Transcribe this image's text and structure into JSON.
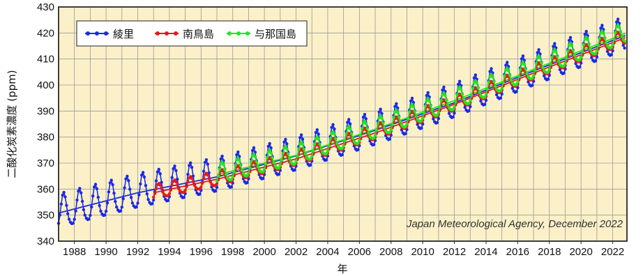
{
  "chart_data": {
    "type": "line",
    "title": "",
    "xlabel": "年",
    "ylabel": "二酸化炭素濃度 (ppm)",
    "xlim": [
      1987.0,
      2022.9
    ],
    "ylim": [
      340,
      430
    ],
    "x_ticks": [
      1988,
      1990,
      1992,
      1994,
      1996,
      1998,
      2000,
      2002,
      2004,
      2006,
      2008,
      2010,
      2012,
      2014,
      2016,
      2018,
      2020,
      2022
    ],
    "y_ticks": [
      340,
      350,
      360,
      370,
      380,
      390,
      400,
      410,
      420,
      430
    ],
    "grid": true,
    "legend_position": "top-left",
    "annotation": "Japan Meteorological Agency, December 2022",
    "colors": {
      "background": "#fbf0c8",
      "grid": "#9a9a9a",
      "綾里": "#1a2ae6",
      "南鳥島": "#e61a1a",
      "与那国島": "#22e622"
    },
    "series": [
      {
        "name": "綾里",
        "color": "#1a2ae6",
        "start_year": 1987.0,
        "end_year": 2022.8,
        "trend_points": [
          [
            1987.0,
            350.8
          ],
          [
            1992.0,
            358.6
          ],
          [
            1997.0,
            364.7
          ],
          [
            2002.0,
            372.8
          ],
          [
            2007.0,
            382.6
          ],
          [
            2012.0,
            393.2
          ],
          [
            2017.0,
            405.4
          ],
          [
            2022.8,
            419.0
          ]
        ],
        "seasonal_amplitude": 7.5
      },
      {
        "name": "南鳥島",
        "color": "#e61a1a",
        "start_year": 1993.0,
        "end_year": 2022.8,
        "trend_points": [
          [
            1993.0,
            358.6
          ],
          [
            1997.0,
            363.8
          ],
          [
            2002.0,
            371.6
          ],
          [
            2007.0,
            381.6
          ],
          [
            2012.0,
            392.6
          ],
          [
            2017.0,
            404.6
          ],
          [
            2022.8,
            418.2
          ]
        ],
        "seasonal_amplitude": 3.2
      },
      {
        "name": "与那国島",
        "color": "#22e622",
        "start_year": 1997.0,
        "end_year": 2022.8,
        "trend_points": [
          [
            1997.0,
            365.5
          ],
          [
            2002.0,
            373.0
          ],
          [
            2007.0,
            383.0
          ],
          [
            2012.0,
            394.0
          ],
          [
            2017.0,
            406.0
          ],
          [
            2022.8,
            419.8
          ]
        ],
        "seasonal_amplitude": 4.5
      }
    ]
  }
}
